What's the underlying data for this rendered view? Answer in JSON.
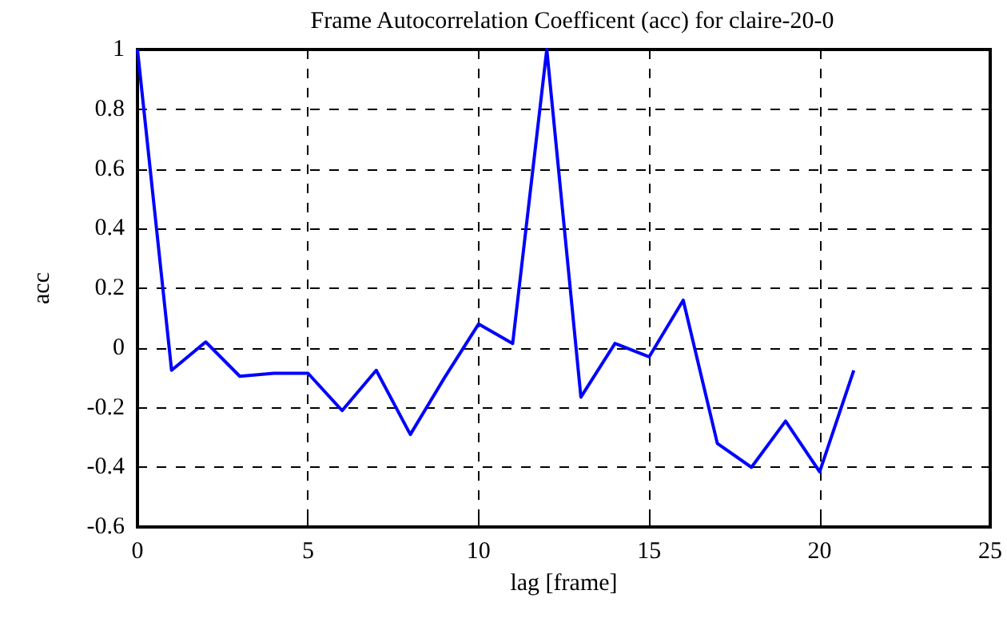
{
  "chart_data": {
    "type": "line",
    "title": "Frame Autocorrelation Coefficent (acc) for claire-20-0",
    "xlabel": "lag [frame]",
    "ylabel": "acc",
    "x": [
      0,
      1,
      2,
      3,
      4,
      5,
      6,
      7,
      8,
      9,
      10,
      11,
      12,
      13,
      14,
      15,
      16,
      17,
      18,
      19,
      20,
      21
    ],
    "series": [
      {
        "color": "#0000ff",
        "values": [
          1,
          -0.075,
          0.02,
          -0.095,
          -0.085,
          -0.085,
          -0.21,
          -0.075,
          -0.29,
          -0.1,
          0.08,
          0.015,
          1,
          -0.165,
          0.015,
          -0.03,
          0.16,
          -0.32,
          -0.4,
          -0.245,
          -0.415,
          -0.075
        ]
      }
    ],
    "xlim": [
      0,
      25
    ],
    "xticks": [
      0,
      5,
      10,
      15,
      20,
      25
    ],
    "ylim": [
      -0.6,
      1
    ],
    "yticks": [
      -0.6,
      -0.4,
      -0.2,
      0,
      0.2,
      0.4,
      0.6,
      0.8,
      1
    ],
    "grid": true,
    "marker": "none",
    "line_style": "solid"
  }
}
